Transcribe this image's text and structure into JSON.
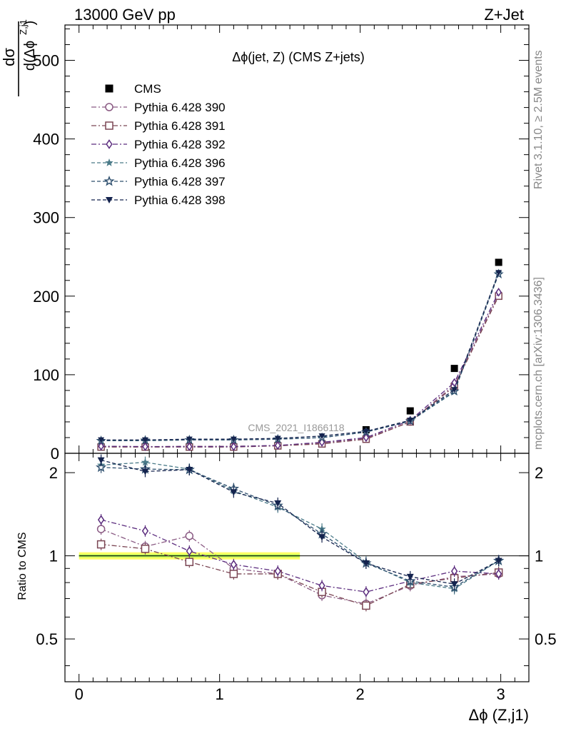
{
  "header": {
    "left": "13000 GeV pp",
    "right": "Z+Jet"
  },
  "side_labels": {
    "rivet": "Rivet 3.1.10, ≥ 2.5M events",
    "mcplots": "mcplots.cern.ch [arXiv:1306.3436]"
  },
  "chart_data": [
    {
      "type": "scatter",
      "panel": "main",
      "title": "Δϕ(jet, Z) (CMS Z+jets)",
      "watermark": "CMS_2021_I1866118",
      "ylabel_num": "dσ",
      "ylabel_den": "d(Δϕ",
      "ylabel_sup": "Z,j1",
      "ylabel_close": ")",
      "xlim": [
        -0.1,
        3.2
      ],
      "ylim": [
        0,
        545
      ],
      "yticks": [
        0,
        100,
        200,
        300,
        400,
        500
      ],
      "grid": false,
      "legend_position": "top-left",
      "x": [
        0.157,
        0.471,
        0.785,
        1.1,
        1.414,
        1.728,
        2.042,
        2.356,
        2.67,
        2.985
      ],
      "series": [
        {
          "name": "CMS",
          "color": "#000000",
          "marker": "square-filled",
          "line": "none",
          "values": [
            null,
            null,
            null,
            null,
            null,
            null,
            30,
            54,
            108,
            243
          ]
        },
        {
          "name": "Pythia 6.428 390",
          "color": "#8a5a83",
          "marker": "circle-open",
          "line": "dashdot",
          "values": [
            9,
            8.5,
            9,
            9,
            10,
            13,
            19,
            40,
            87,
            202
          ]
        },
        {
          "name": "Pythia 6.428 391",
          "color": "#7b4654",
          "marker": "square-open",
          "line": "dashdot",
          "values": [
            8,
            8,
            8,
            8,
            9.5,
            12,
            18,
            40,
            85,
            200
          ]
        },
        {
          "name": "Pythia 6.428 392",
          "color": "#5b2c7e",
          "marker": "diamond-open",
          "line": "dashdot",
          "values": [
            9,
            8.5,
            8.5,
            8.5,
            10,
            14,
            20,
            42,
            90,
            205
          ]
        },
        {
          "name": "Pythia 6.428 396",
          "color": "#4a7a88",
          "marker": "star-filled",
          "line": "dashed",
          "values": [
            16,
            16,
            17,
            17,
            18,
            20,
            27,
            41,
            78,
            230
          ]
        },
        {
          "name": "Pythia 6.428 397",
          "color": "#2e4f6e",
          "marker": "star-open",
          "line": "dashed",
          "values": [
            16,
            16.5,
            17,
            17,
            18,
            20,
            27,
            41,
            79,
            228
          ]
        },
        {
          "name": "Pythia 6.428 398",
          "color": "#14234e",
          "marker": "triangle-down-filled",
          "line": "dashed",
          "values": [
            17,
            17,
            18,
            18,
            19,
            22,
            28,
            42,
            81,
            230
          ]
        }
      ]
    },
    {
      "type": "scatter",
      "panel": "ratio",
      "ylabel": "Ratio to CMS",
      "xlabel": "Δϕ (Z,j1)",
      "xlim": [
        -0.1,
        3.2
      ],
      "xticks": [
        0,
        1,
        2,
        3
      ],
      "ylim": [
        0.35,
        2.35
      ],
      "ylog": true,
      "yticks": [
        0.5,
        1,
        2
      ],
      "yticklabels": [
        "0.5",
        "1",
        "2"
      ],
      "band": {
        "x": [
          0,
          1.571
        ],
        "y": [
          0.97,
          1.03
        ],
        "colors": [
          "#ffff66",
          "#aaee55"
        ]
      },
      "x": [
        0.157,
        0.471,
        0.785,
        1.1,
        1.414,
        1.728,
        2.042,
        2.356,
        2.67,
        2.985
      ],
      "series": [
        {
          "name": "Pythia 6.428 390",
          "values": [
            1.25,
            1.08,
            1.18,
            0.9,
            0.86,
            0.72,
            0.67,
            0.78,
            0.84,
            0.86
          ]
        },
        {
          "name": "Pythia 6.428 391",
          "values": [
            1.1,
            1.06,
            0.95,
            0.86,
            0.86,
            0.74,
            0.66,
            0.79,
            0.83,
            0.87
          ]
        },
        {
          "name": "Pythia 6.428 392",
          "values": [
            1.35,
            1.23,
            1.04,
            0.93,
            0.88,
            0.78,
            0.74,
            0.81,
            0.88,
            0.86
          ]
        },
        {
          "name": "Pythia 6.428 396",
          "values": [
            2.13,
            2.18,
            2.06,
            1.72,
            1.5,
            1.25,
            0.95,
            0.8,
            0.76,
            0.96
          ]
        },
        {
          "name": "Pythia 6.428 397",
          "values": [
            2.09,
            2.06,
            2.05,
            1.75,
            1.52,
            1.2,
            0.94,
            0.81,
            0.77,
            0.96
          ]
        },
        {
          "name": "Pythia 6.428 398",
          "values": [
            2.22,
            2.02,
            2.05,
            1.7,
            1.55,
            1.17,
            0.94,
            0.84,
            0.79,
            0.96
          ]
        }
      ]
    }
  ]
}
